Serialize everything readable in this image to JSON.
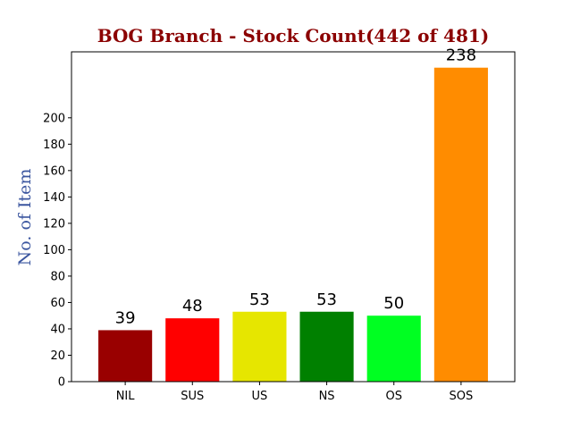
{
  "chart_data": {
    "type": "bar",
    "title": "BOG Branch - Stock Count(442 of 481)",
    "title_color": "#8B0000",
    "xlabel": "",
    "ylabel": "No. of Item",
    "ylabel_color": "#3A559F",
    "categories": [
      "NIL",
      "SUS",
      "US",
      "NS",
      "OS",
      "SOS"
    ],
    "values": [
      39,
      48,
      53,
      53,
      50,
      238
    ],
    "colors": [
      "#990000",
      "#FF0000",
      "#E6E600",
      "#008000",
      "#00FF22",
      "#FF8C00"
    ],
    "ylim": [
      0,
      250
    ],
    "yticks": [
      0,
      20,
      40,
      60,
      80,
      100,
      120,
      140,
      160,
      180,
      200
    ],
    "grid": false,
    "legend": "none"
  }
}
